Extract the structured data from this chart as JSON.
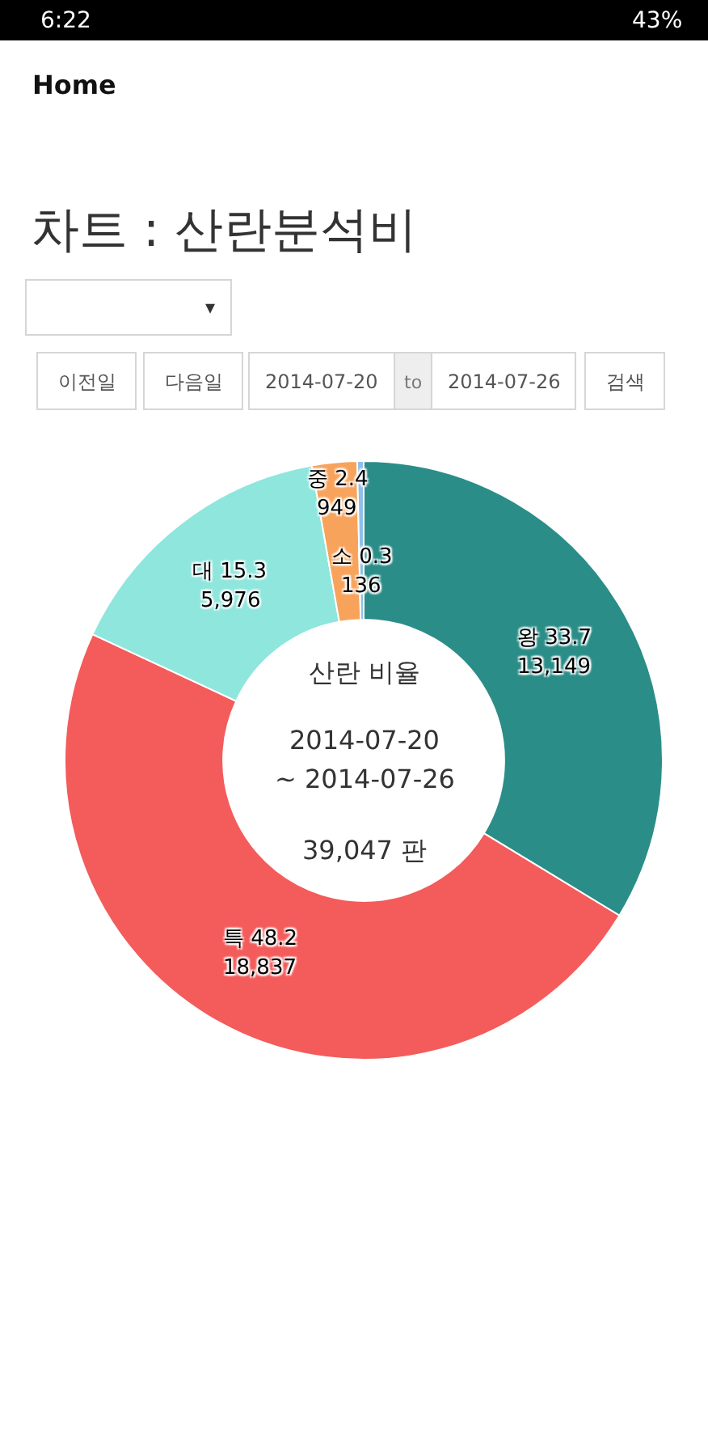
{
  "chart_data": {
    "type": "donut",
    "title": "차트 : 산란분석비",
    "categories": [
      "왕 33.7",
      "특 48.2",
      "대 15.3",
      "중 2.4",
      "소 0.3"
    ],
    "values": [
      13149,
      18837,
      5976,
      949,
      136
    ],
    "colors": [
      "#2b8d88",
      "#f45b5b",
      "#8ee6dd",
      "#f7a35c",
      "#90c0e8"
    ],
    "value_labels": [
      "13,149",
      "18,837",
      "5,976",
      "949",
      "136"
    ],
    "annotations": [
      "6:22",
      "43%",
      "Home",
      "이전일",
      "다음일",
      "2014-07-20",
      "to",
      "2014-07-26",
      "검색",
      "산란 비율",
      "2014-07-20",
      "~ 2014-07-26",
      "39,047 판",
      "▾"
    ]
  }
}
